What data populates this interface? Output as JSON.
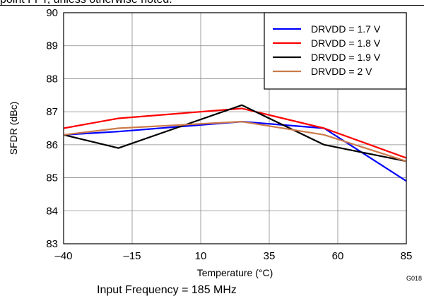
{
  "header_text": "point FFT, unless otherwise noted.",
  "caption": "Input Frequency = 185 MHz",
  "chart_data": {
    "type": "line",
    "title": "",
    "xlabel": "Temperature (°C)",
    "ylabel": "SFDR (dBc)",
    "xlim": [
      -40,
      85
    ],
    "ylim": [
      83,
      90
    ],
    "x_ticks": [
      -40,
      -15,
      10,
      35,
      60,
      85
    ],
    "x_tick_labels": [
      "–40",
      "–15",
      "10",
      "35",
      "60",
      "85"
    ],
    "y_ticks": [
      83,
      84,
      85,
      86,
      87,
      88,
      89,
      90
    ],
    "y_tick_labels": [
      "83",
      "84",
      "85",
      "86",
      "87",
      "88",
      "89",
      "90"
    ],
    "grid": true,
    "legend_position": "top-right",
    "figure_id": "G018",
    "series": [
      {
        "name": "DRVDD = 1.7 V",
        "color": "#0000ff",
        "x": [
          -40,
          -20,
          25,
          55,
          85
        ],
        "y": [
          86.3,
          86.4,
          86.7,
          86.5,
          84.9
        ]
      },
      {
        "name": "DRVDD = 1.8 V",
        "color": "#ff0000",
        "x": [
          -40,
          -20,
          25,
          55,
          85
        ],
        "y": [
          86.5,
          86.8,
          87.1,
          86.5,
          85.6
        ]
      },
      {
        "name": "DRVDD = 1.9 V",
        "color": "#000000",
        "x": [
          -40,
          -20,
          25,
          55,
          85
        ],
        "y": [
          86.3,
          85.9,
          87.2,
          86.0,
          85.5
        ]
      },
      {
        "name": "DRVDD = 2 V",
        "color": "#cc7a4a",
        "x": [
          -40,
          -20,
          25,
          55,
          85
        ],
        "y": [
          86.3,
          86.5,
          86.7,
          86.3,
          85.5
        ]
      }
    ]
  }
}
